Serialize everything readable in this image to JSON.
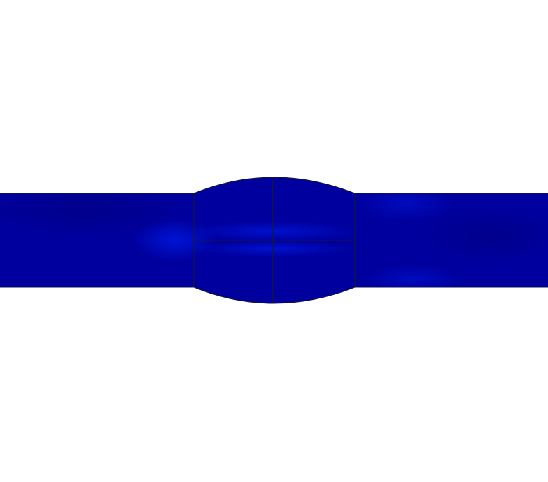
{
  "colors": {
    "background": "#ffffff",
    "base_blue": "#00009e",
    "highlight_blue": "#0014d8",
    "dark_blue": "#000092",
    "mesh_edge": "#1a1a2a"
  },
  "model": {
    "parts": [
      "left-bar",
      "central-weld-bulge",
      "right-bar"
    ],
    "mesh_regions": [
      "upper-left",
      "upper-right",
      "lower-left",
      "lower-right"
    ]
  }
}
